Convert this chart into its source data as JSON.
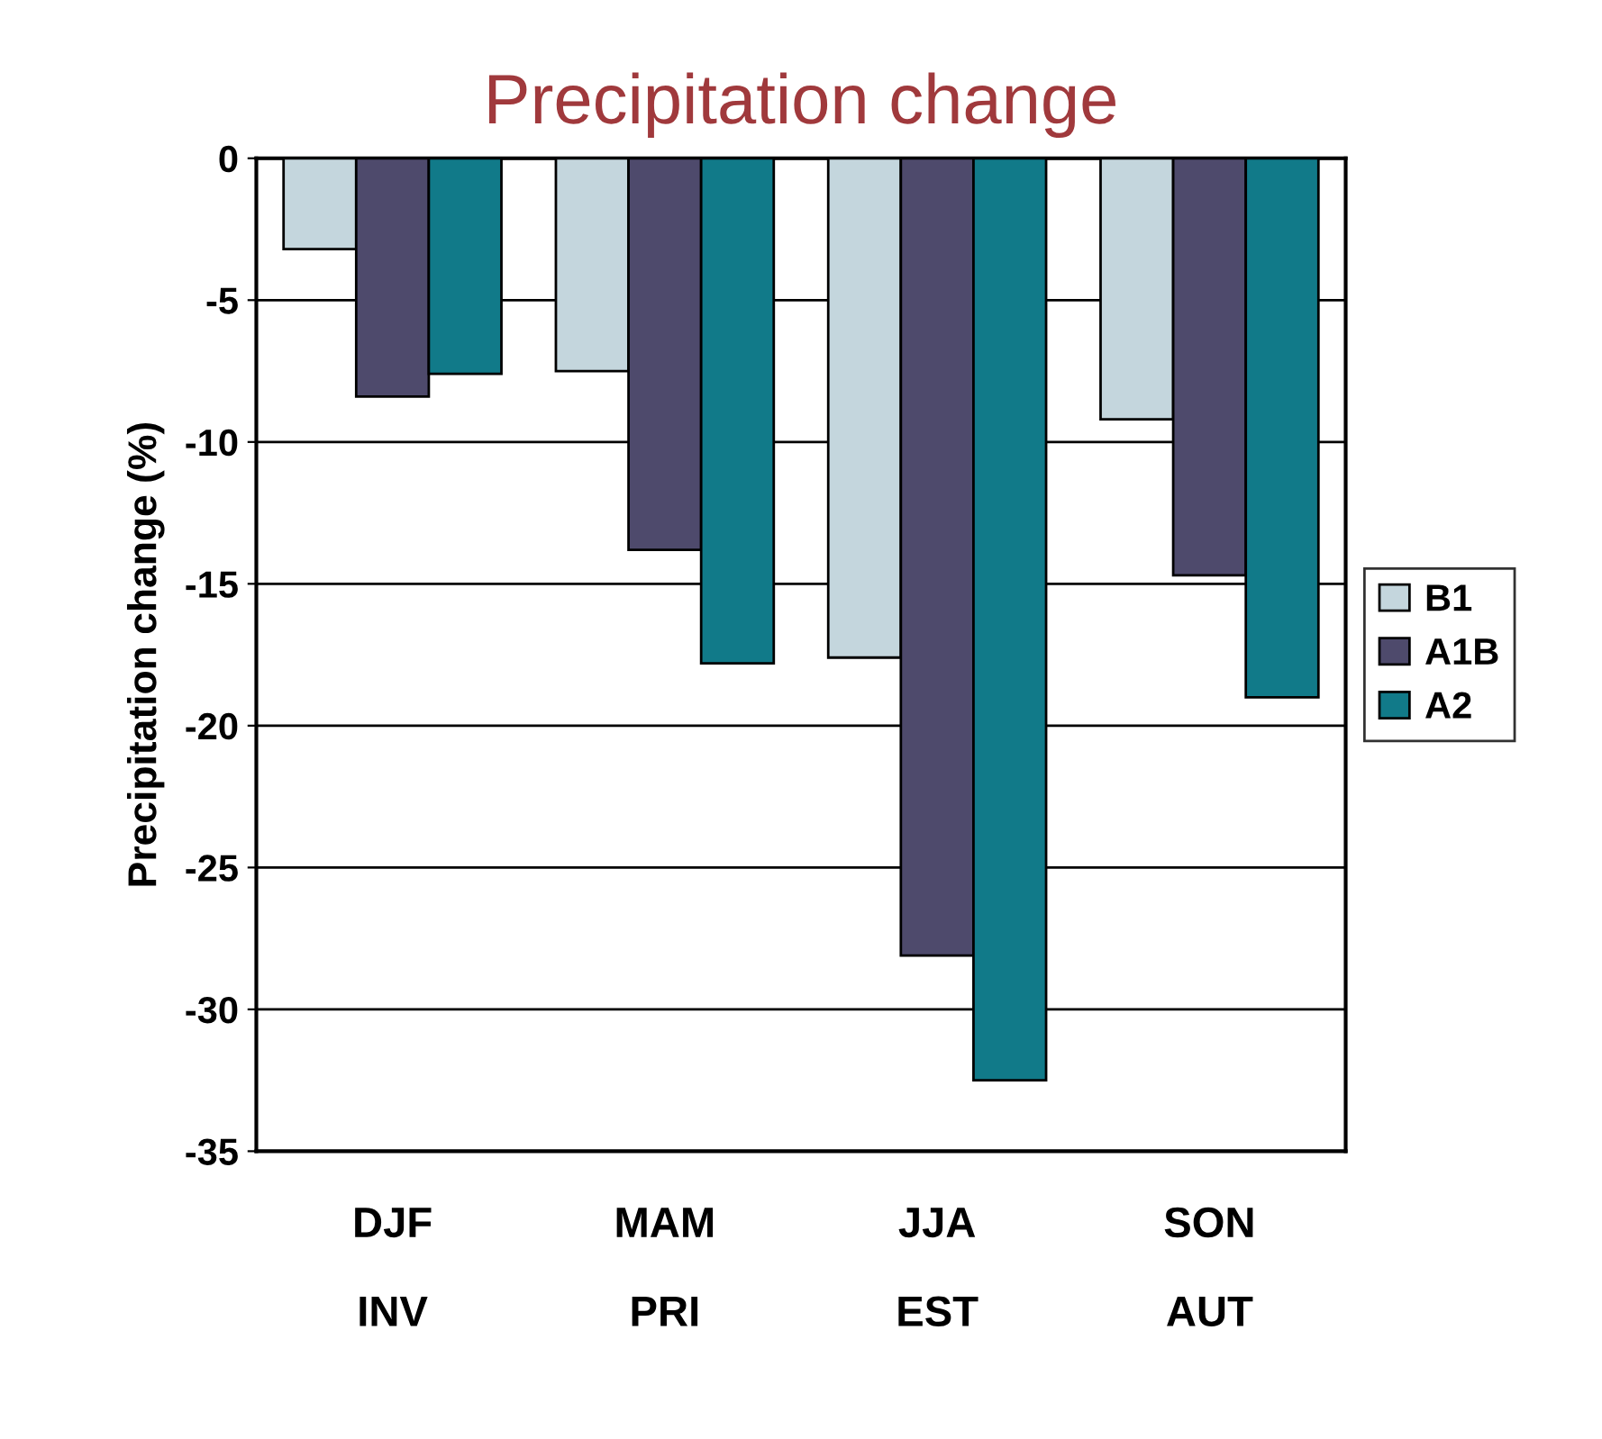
{
  "chart_data": {
    "type": "bar",
    "title": "Precipitation change",
    "ylabel": "Precipitation change (%)",
    "categories": [
      "DJF\nINV",
      "MAM\nPRI",
      "JJA\nEST",
      "SON\nAUT"
    ],
    "series": [
      {
        "name": "B1",
        "color": "#c4d6dd",
        "values": [
          -3.2,
          -7.5,
          -17.6,
          -9.2
        ]
      },
      {
        "name": "A1B",
        "color": "#4e4a6c",
        "values": [
          -8.4,
          -13.8,
          -28.1,
          -14.7
        ]
      },
      {
        "name": "A2",
        "color": "#117a89",
        "values": [
          -7.6,
          -17.8,
          -32.5,
          -19.0
        ]
      }
    ],
    "ylim": [
      -35,
      0
    ],
    "yticks": [
      -35,
      -30,
      -25,
      -20,
      -15,
      -10,
      -5,
      0
    ],
    "grid": "y",
    "legend": "right"
  }
}
